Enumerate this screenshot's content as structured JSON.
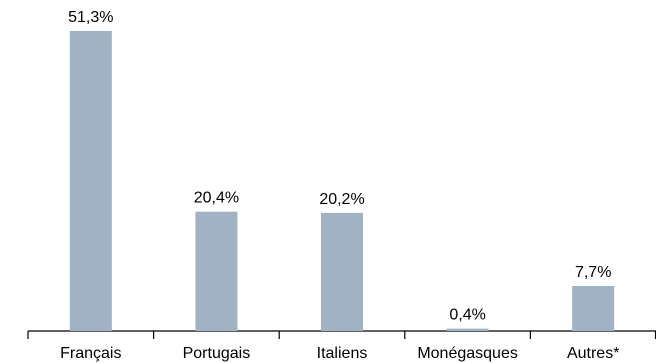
{
  "chart_data": {
    "type": "bar",
    "title": "",
    "xlabel": "",
    "ylabel": "",
    "categories": [
      "Français",
      "Portugais",
      "Italiens",
      "Monégasques",
      "Autres*"
    ],
    "values": [
      51.3,
      20.4,
      20.2,
      0.4,
      7.7
    ],
    "data_labels": [
      "51,3%",
      "20,4%",
      "20,2%",
      "0,4%",
      "7,7%"
    ],
    "unit": "%",
    "ylim": [
      0,
      55
    ],
    "grid": false,
    "legend": "none",
    "bar_color": "#a0b2c3",
    "axis_color": "#000000",
    "text_color": "#000000"
  }
}
